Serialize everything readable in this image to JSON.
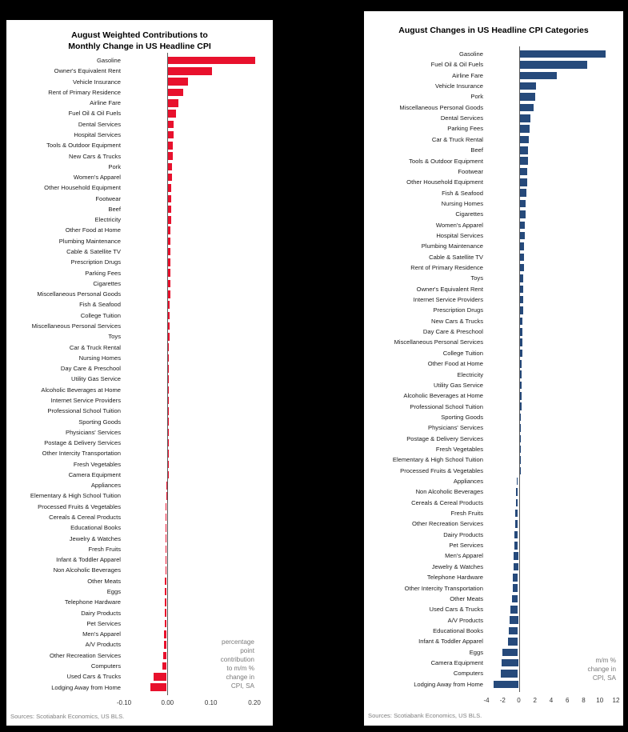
{
  "chart_data": [
    {
      "type": "bar",
      "orientation": "horizontal",
      "title": "August Weighted Contributions to\nMonthly Change in US Headline CPI",
      "bar_color": "#e8112d",
      "xlim": [
        -0.1,
        0.2
      ],
      "xticks": [
        -0.1,
        0.0,
        0.1,
        0.2
      ],
      "xtick_labels": [
        "-0.10",
        "0.00",
        "0.10",
        "0.20"
      ],
      "annotation": "percentage\npoint\ncontribution\nto m/m %\nchange in\nCPI, SA",
      "source": "Sources: Scotiabank Economics, US BLS.",
      "categories": [
        "Gasoline",
        "Owner's Equivalent Rent",
        "Vehicle Insurance",
        "Rent of Primary Residence",
        "Airline Fare",
        "Fuel Oil & Oil Fuels",
        "Dental Services",
        "Hospital Services",
        "Tools & Outdoor Equipment",
        "New Cars & Trucks",
        "Pork",
        "Women's Apparel",
        "Other Household Equipment",
        "Footwear",
        "Beef",
        "Electricity",
        "Other Food at Home",
        "Plumbing Maintenance",
        "Cable & Satellite TV",
        "Prescription Drugs",
        "Parking Fees",
        "Cigarettes",
        "Miscellaneous Personal Goods",
        "Fish & Seafood",
        "College Tuition",
        "Miscellaneous Personal Services",
        "Toys",
        "Car & Truck Rental",
        "Nursing Homes",
        "Day Care & Preschool",
        "Utility Gas Service",
        "Alcoholic Beverages at Home",
        "Internet Service Providers",
        "Professional School Tuition",
        "Sporting Goods",
        "Physicians' Services",
        "Postage & Delivery Services",
        "Other Intercity Transportation",
        "Fresh Vegetables",
        "Camera Equipment",
        "Appliances",
        "Elementary & High School Tuition",
        "Processed Fruits & Vegetables",
        "Cereals & Cereal Products",
        "Educational Books",
        "Jewelry & Watches",
        "Fresh Fruits",
        "Infant & Toddler Apparel",
        "Non Alcoholic Beverages",
        "Other Meats",
        "Eggs",
        "Telephone Hardware",
        "Dairy Products",
        "Pet Services",
        "Men's Apparel",
        "A/V Products",
        "Other Recreation Services",
        "Computers",
        "Used Cars & Trucks",
        "Lodging Away from Home"
      ],
      "values": [
        0.2,
        0.1,
        0.046,
        0.035,
        0.024,
        0.017,
        0.013,
        0.012,
        0.011,
        0.01,
        0.008,
        0.008,
        0.007,
        0.007,
        0.006,
        0.006,
        0.005,
        0.005,
        0.005,
        0.004,
        0.004,
        0.004,
        0.004,
        0.003,
        0.003,
        0.003,
        0.003,
        0.002,
        0.002,
        0.002,
        0.002,
        0.002,
        0.002,
        0.001,
        0.001,
        0.001,
        0.001,
        0.001,
        0.001,
        0.001,
        -0.001,
        -0.001,
        -0.002,
        -0.002,
        -0.002,
        -0.002,
        -0.003,
        -0.003,
        -0.003,
        -0.004,
        -0.004,
        -0.004,
        -0.005,
        -0.005,
        -0.006,
        -0.007,
        -0.008,
        -0.01,
        -0.03,
        -0.038
      ]
    },
    {
      "type": "bar",
      "orientation": "horizontal",
      "title": "August Changes in US Headline CPI Categories",
      "bar_color": "#264a7b",
      "xlim": [
        -4,
        12
      ],
      "xticks": [
        -4,
        -2,
        0,
        2,
        4,
        6,
        8,
        10,
        12
      ],
      "xtick_labels": [
        "-4",
        "-2",
        "0",
        "2",
        "4",
        "6",
        "8",
        "10",
        "12"
      ],
      "annotation": "m/m %\nchange in\nCPI, SA",
      "source": "Sources: Scotiabank Economics, US BLS.",
      "categories": [
        "Gasoline",
        "Fuel Oil & Oil Fuels",
        "Airline Fare",
        "Vehicle Insurance",
        "Pork",
        "Miscellaneous Personal Goods",
        "Dental Services",
        "Parking Fees",
        "Car & Truck Rental",
        "Beef",
        "Tools & Outdoor Equipment",
        "Footwear",
        "Other Household Equipment",
        "Fish & Seafood",
        "Nursing Homes",
        "Cigarettes",
        "Women's Apparel",
        "Hospital Services",
        "Plumbing Maintenance",
        "Cable & Satellite TV",
        "Rent of Primary Residence",
        "Toys",
        "Owner's Equivalent Rent",
        "Internet Service Providers",
        "Prescription Drugs",
        "New Cars & Trucks",
        "Day Care & Preschool",
        "Miscellaneous Personal Services",
        "College Tuition",
        "Other Food at Home",
        "Electricity",
        "Utility Gas Service",
        "Alcoholic Beverages at Home",
        "Professional School Tuition",
        "Sporting Goods",
        "Physicians' Services",
        "Postage & Delivery Services",
        "Fresh Vegetables",
        "Elementary & High School Tuition",
        "Processed Fruits & Vegetables",
        "Appliances",
        "Non Alcoholic Beverages",
        "Cereals & Cereal Products",
        "Fresh Fruits",
        "Other Recreation Services",
        "Dairy Products",
        "Pet Services",
        "Men's Apparel",
        "Jewelry & Watches",
        "Telephone Hardware",
        "Other Intercity Transportation",
        "Other Meats",
        "Used Cars & Trucks",
        "A/V Products",
        "Educational Books",
        "Infant & Toddler Apparel",
        "Eggs",
        "Camera Equipment",
        "Computers",
        "Lodging Away from Home"
      ],
      "values": [
        10.6,
        8.3,
        4.6,
        2.0,
        1.9,
        1.7,
        1.3,
        1.2,
        1.1,
        1.0,
        1.0,
        0.9,
        0.9,
        0.8,
        0.7,
        0.7,
        0.6,
        0.6,
        0.5,
        0.5,
        0.5,
        0.4,
        0.4,
        0.4,
        0.4,
        0.3,
        0.3,
        0.3,
        0.3,
        0.2,
        0.2,
        0.2,
        0.2,
        0.2,
        0.1,
        0.1,
        0.1,
        0.1,
        0.1,
        0.05,
        -0.1,
        -0.2,
        -0.2,
        -0.3,
        -0.3,
        -0.4,
        -0.4,
        -0.5,
        -0.5,
        -0.6,
        -0.6,
        -0.7,
        -0.9,
        -1.0,
        -1.1,
        -1.2,
        -1.9,
        -2.0,
        -2.1,
        -3.0
      ]
    }
  ]
}
